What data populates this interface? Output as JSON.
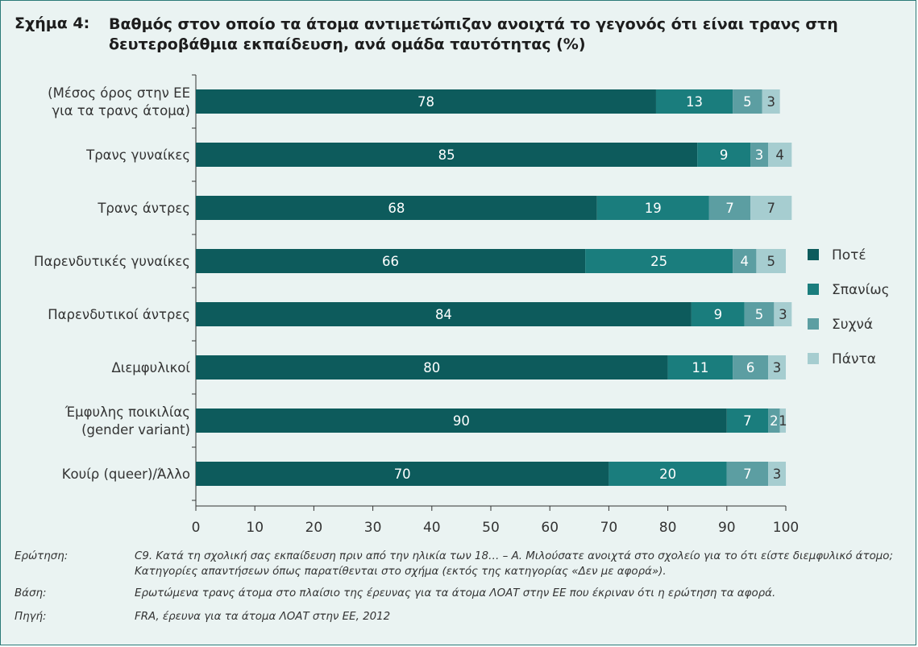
{
  "figure": {
    "label": "Σχήμα 4:",
    "title": "Βαθμός στον οποίο τα άτομα αντιμετώπιζαν ανοιχτά το γεγονός ότι είναι τρανς στη δευτεροβάθμια εκπαίδευση, ανά ομάδα ταυτότητας (%)"
  },
  "chart_data": {
    "type": "bar",
    "orientation": "horizontal",
    "stacked": true,
    "categories": [
      [
        "(Μέσος όρος στην ΕΕ",
        "για τα τρανς άτομα)"
      ],
      [
        "Τρανς γυναίκες"
      ],
      [
        "Τρανς άντρες"
      ],
      [
        "Παρενδυτικές γυναίκες"
      ],
      [
        "Παρενδυτικοί άντρες"
      ],
      [
        "Διεμφυλικοί"
      ],
      [
        "Έμφυλης ποικιλίας",
        "(gender variant)"
      ],
      [
        "Κουίρ (queer)/Άλλο"
      ]
    ],
    "series": [
      {
        "name": "Ποτέ",
        "color": "#0d5b5c",
        "values": [
          78,
          85,
          68,
          66,
          84,
          80,
          90,
          70
        ]
      },
      {
        "name": "Σπανίως",
        "color": "#1a7d7d",
        "values": [
          13,
          9,
          19,
          25,
          9,
          11,
          7,
          20
        ]
      },
      {
        "name": "Συχνά",
        "color": "#5c9ea2",
        "values": [
          5,
          3,
          7,
          4,
          5,
          6,
          2,
          7
        ]
      },
      {
        "name": "Πάντα",
        "color": "#a6cdd0",
        "values": [
          3,
          4,
          7,
          5,
          3,
          3,
          1,
          3
        ]
      }
    ],
    "xlim": [
      0,
      100
    ],
    "xticks": [
      0,
      10,
      20,
      30,
      40,
      50,
      60,
      70,
      80,
      90,
      100
    ],
    "legend_position": "right",
    "grid": false
  },
  "notes": [
    {
      "key": "Ερώτηση:",
      "text": "C9. Κατά τη σχολική σας εκπαίδευση πριν από την ηλικία των 18… – Α. Μιλούσατε ανοιχτά στο σχολείο για το ότι είστε διεμφυλικό άτομο; Κατηγορίες απαντήσεων όπως παρατίθενται στο σχήμα (εκτός της κατηγορίας «Δεν με αφορά»)."
    },
    {
      "key": "Βάση:",
      "text": "Ερωτώμενα τρανς άτομα στο πλαίσιο της έρευνας για τα άτομα ΛΟΑΤ στην ΕΕ που έκριναν ότι η ερώτηση τα αφορά."
    },
    {
      "key": "Πηγή:",
      "text": "FRA, έρευνα για τα άτομα ΛΟΑΤ στην ΕΕ, 2012"
    }
  ]
}
